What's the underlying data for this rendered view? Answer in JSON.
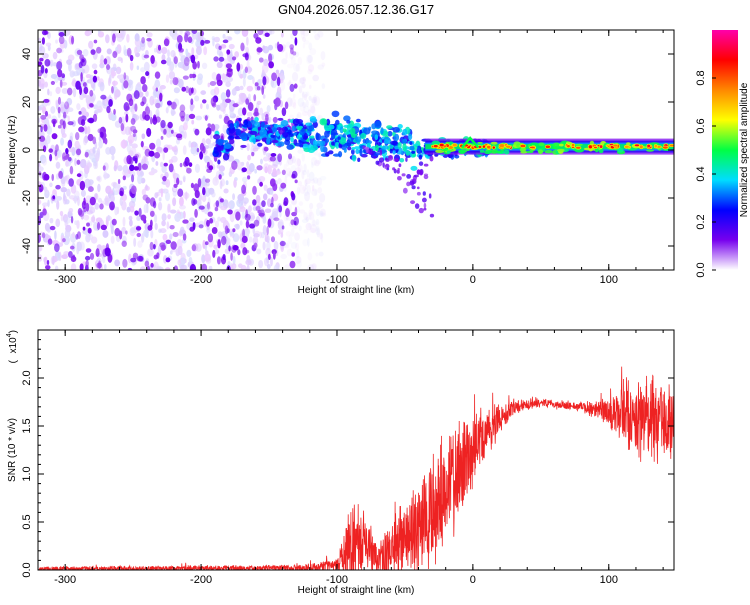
{
  "chart_data": [
    {
      "type": "heatmap",
      "title": "GN04.2026.057.12.36.G17",
      "xlabel": "Height of straight line (km)",
      "ylabel": "Frequency (Hz)",
      "xlim": [
        -320,
        148
      ],
      "ylim": [
        -50,
        50
      ],
      "xticks": [
        -300,
        -200,
        -100,
        0,
        100
      ],
      "yticks": [
        -40,
        -20,
        0,
        20,
        40
      ],
      "colorbar": {
        "label": "Normalized spectral amplitude",
        "range": [
          0,
          1
        ],
        "ticks": [
          "0.0",
          "0.2",
          "0.4",
          "0.6",
          "0.8"
        ],
        "colors": [
          "#ffffff",
          "#7700ee",
          "#0000ff",
          "#00ddff",
          "#00ff44",
          "#ffff00",
          "#ff8800",
          "#ff0000",
          "#ff00aa"
        ]
      },
      "features": {
        "noise_region_x": [
          -320,
          -115
        ],
        "signal_start_x": -190,
        "signal_trend": [
          {
            "x": -180,
            "f": 7
          },
          {
            "x": -130,
            "f": 7
          },
          {
            "x": -100,
            "f": 6
          },
          {
            "x": -70,
            "f": 3
          },
          {
            "x": -40,
            "f": 0
          },
          {
            "x": -30,
            "f": 1
          },
          {
            "x": 0,
            "f": 1
          },
          {
            "x": 148,
            "f": 1
          }
        ]
      }
    },
    {
      "type": "line",
      "xlabel": "Height of straight line (km)",
      "ylabel": "SNR (10 * v/v)",
      "y_multiplier": "x10",
      "y_multiplier_exp": "4",
      "xlim": [
        -320,
        148
      ],
      "ylim": [
        0,
        2.5
      ],
      "xticks": [
        -300,
        -200,
        -100,
        0,
        100
      ],
      "yticks": [
        0.0,
        0.5,
        1.0,
        1.5,
        2.0
      ],
      "ytick_labels": [
        "0.0",
        "0.5",
        "1.0",
        "1.5",
        "2.0"
      ],
      "series": [
        {
          "name": "SNR",
          "color": "#ee2222",
          "envelope": [
            {
              "x": -320,
              "base": 0.01,
              "amp": 0.03
            },
            {
              "x": -130,
              "base": 0.02,
              "amp": 0.04
            },
            {
              "x": -100,
              "base": 0.05,
              "amp": 0.08
            },
            {
              "x": -90,
              "base": 0.25,
              "amp": 0.55
            },
            {
              "x": -80,
              "base": 0.25,
              "amp": 0.45
            },
            {
              "x": -70,
              "base": 0.1,
              "amp": 0.25
            },
            {
              "x": -50,
              "base": 0.3,
              "amp": 0.5
            },
            {
              "x": -30,
              "base": 0.6,
              "amp": 0.7
            },
            {
              "x": -10,
              "base": 1.05,
              "amp": 0.6
            },
            {
              "x": 10,
              "base": 1.45,
              "amp": 0.3
            },
            {
              "x": 30,
              "base": 1.7,
              "amp": 0.1
            },
            {
              "x": 50,
              "base": 1.74,
              "amp": 0.05
            },
            {
              "x": 80,
              "base": 1.7,
              "amp": 0.06
            },
            {
              "x": 95,
              "base": 1.66,
              "amp": 0.12
            },
            {
              "x": 110,
              "base": 1.62,
              "amp": 0.4
            },
            {
              "x": 130,
              "base": 1.55,
              "amp": 0.55
            },
            {
              "x": 148,
              "base": 1.5,
              "amp": 0.4
            }
          ]
        }
      ]
    }
  ]
}
